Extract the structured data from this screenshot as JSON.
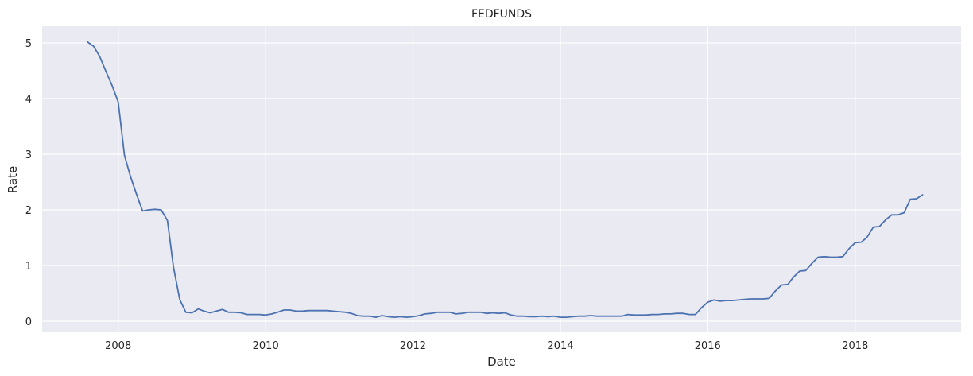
{
  "chart_data": {
    "type": "line",
    "title": "FEDFUNDS",
    "xlabel": "Date",
    "ylabel": "Rate",
    "xlim": [
      "2006-12-20",
      "2019-06-10"
    ],
    "ylim": [
      -0.2,
      5.3
    ],
    "xticks": [
      {
        "date": "2008-01-01",
        "label": "2008"
      },
      {
        "date": "2010-01-01",
        "label": "2010"
      },
      {
        "date": "2012-01-01",
        "label": "2012"
      },
      {
        "date": "2014-01-01",
        "label": "2014"
      },
      {
        "date": "2016-01-01",
        "label": "2016"
      },
      {
        "date": "2018-01-01",
        "label": "2018"
      }
    ],
    "yticks": [
      0,
      1,
      2,
      3,
      4,
      5
    ],
    "grid": true,
    "colors": {
      "background": "#eaeaf2",
      "grid": "#ffffff",
      "line": "#4c72b0"
    },
    "series": [
      {
        "x": [
          "2007-08",
          "2007-09",
          "2007-10",
          "2007-11",
          "2007-12",
          "2008-01",
          "2008-02",
          "2008-03",
          "2008-04",
          "2008-05",
          "2008-06",
          "2008-07",
          "2008-08",
          "2008-09",
          "2008-10",
          "2008-11",
          "2008-12",
          "2009-01",
          "2009-02",
          "2009-03",
          "2009-04",
          "2009-05",
          "2009-06",
          "2009-07",
          "2009-08",
          "2009-09",
          "2009-10",
          "2009-11",
          "2009-12",
          "2010-01",
          "2010-02",
          "2010-03",
          "2010-04",
          "2010-05",
          "2010-06",
          "2010-07",
          "2010-08",
          "2010-09",
          "2010-10",
          "2010-11",
          "2010-12",
          "2011-01",
          "2011-02",
          "2011-03",
          "2011-04",
          "2011-05",
          "2011-06",
          "2011-07",
          "2011-08",
          "2011-09",
          "2011-10",
          "2011-11",
          "2011-12",
          "2012-01",
          "2012-02",
          "2012-03",
          "2012-04",
          "2012-05",
          "2012-06",
          "2012-07",
          "2012-08",
          "2012-09",
          "2012-10",
          "2012-11",
          "2012-12",
          "2013-01",
          "2013-02",
          "2013-03",
          "2013-04",
          "2013-05",
          "2013-06",
          "2013-07",
          "2013-08",
          "2013-09",
          "2013-10",
          "2013-11",
          "2013-12",
          "2014-01",
          "2014-02",
          "2014-03",
          "2014-04",
          "2014-05",
          "2014-06",
          "2014-07",
          "2014-08",
          "2014-09",
          "2014-10",
          "2014-11",
          "2014-12",
          "2015-01",
          "2015-02",
          "2015-03",
          "2015-04",
          "2015-05",
          "2015-06",
          "2015-07",
          "2015-08",
          "2015-09",
          "2015-10",
          "2015-11",
          "2015-12",
          "2016-01",
          "2016-02",
          "2016-03",
          "2016-04",
          "2016-05",
          "2016-06",
          "2016-07",
          "2016-08",
          "2016-09",
          "2016-10",
          "2016-11",
          "2016-12",
          "2017-01",
          "2017-02",
          "2017-03",
          "2017-04",
          "2017-05",
          "2017-06",
          "2017-07",
          "2017-08",
          "2017-09",
          "2017-10",
          "2017-11",
          "2017-12",
          "2018-01",
          "2018-02",
          "2018-03",
          "2018-04",
          "2018-05",
          "2018-06",
          "2018-07",
          "2018-08",
          "2018-09",
          "2018-10",
          "2018-11",
          "2018-12"
        ],
        "values": [
          5.02,
          4.94,
          4.76,
          4.49,
          4.24,
          3.94,
          2.98,
          2.61,
          2.28,
          1.98,
          2.0,
          2.01,
          2.0,
          1.81,
          0.97,
          0.39,
          0.16,
          0.15,
          0.22,
          0.18,
          0.15,
          0.18,
          0.21,
          0.16,
          0.16,
          0.15,
          0.12,
          0.12,
          0.12,
          0.11,
          0.13,
          0.16,
          0.2,
          0.2,
          0.18,
          0.18,
          0.19,
          0.19,
          0.19,
          0.19,
          0.18,
          0.17,
          0.16,
          0.14,
          0.1,
          0.09,
          0.09,
          0.07,
          0.1,
          0.08,
          0.07,
          0.08,
          0.07,
          0.08,
          0.1,
          0.13,
          0.14,
          0.16,
          0.16,
          0.16,
          0.13,
          0.14,
          0.16,
          0.16,
          0.16,
          0.14,
          0.15,
          0.14,
          0.15,
          0.11,
          0.09,
          0.09,
          0.08,
          0.08,
          0.09,
          0.08,
          0.09,
          0.07,
          0.07,
          0.08,
          0.09,
          0.09,
          0.1,
          0.09,
          0.09,
          0.09,
          0.09,
          0.09,
          0.12,
          0.11,
          0.11,
          0.11,
          0.12,
          0.12,
          0.13,
          0.13,
          0.14,
          0.14,
          0.12,
          0.12,
          0.24,
          0.34,
          0.38,
          0.36,
          0.37,
          0.37,
          0.38,
          0.39,
          0.4,
          0.4,
          0.4,
          0.41,
          0.54,
          0.65,
          0.66,
          0.79,
          0.9,
          0.91,
          1.04,
          1.15,
          1.16,
          1.15,
          1.15,
          1.16,
          1.3,
          1.41,
          1.42,
          1.51,
          1.69,
          1.7,
          1.82,
          1.91,
          1.91,
          1.95,
          2.19,
          2.2,
          2.27
        ]
      }
    ]
  }
}
